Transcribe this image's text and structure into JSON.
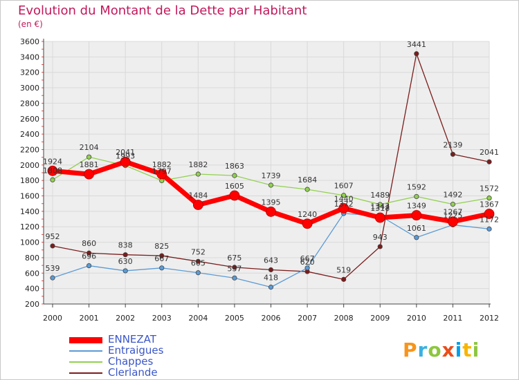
{
  "title": "Evolution du Montant de la Dette par Habitant",
  "unit": "(en €)",
  "logo": {
    "text": "Proxiti",
    "colors": [
      "#f7941d",
      "#3bb0e0",
      "#8dc63f",
      "#e94e1b",
      "#00a0e9",
      "#f7b600",
      "#8dc63f"
    ]
  },
  "chart_data": {
    "type": "line",
    "categories": [
      "2000",
      "2001",
      "2002",
      "2003",
      "2004",
      "2005",
      "2006",
      "2007",
      "2008",
      "2009",
      "2010",
      "2011",
      "2012"
    ],
    "ylim": [
      200,
      3600
    ],
    "yticks": [
      200,
      400,
      600,
      800,
      1000,
      1200,
      1400,
      1600,
      1800,
      2000,
      2200,
      2400,
      2600,
      2800,
      3000,
      3200,
      3400,
      3600
    ],
    "grid": true,
    "legend_position": "bottom-left",
    "series": [
      {
        "name": "ENNEZAT",
        "color": "#ff0000",
        "values": [
          1924,
          1881,
          2041,
          1882,
          1484,
          1605,
          1395,
          1240,
          1440,
          1318,
          1349,
          1267,
          1367
        ]
      },
      {
        "name": "Entraigues",
        "color": "#5b9bd5",
        "values": [
          539,
          696,
          630,
          667,
          605,
          537,
          418,
          667,
          1372,
          1343,
          1061,
          1225,
          1172
        ]
      },
      {
        "name": "Chappes",
        "color": "#92d050",
        "values": [
          1808,
          2104,
          1993,
          1797,
          1882,
          1863,
          1739,
          1684,
          1607,
          1489,
          1592,
          1492,
          1572
        ]
      },
      {
        "name": "Clerlande",
        "color": "#7b1c1c",
        "values": [
          952,
          860,
          838,
          825,
          752,
          675,
          643,
          620,
          519,
          943,
          3441,
          2139,
          2041
        ]
      }
    ]
  }
}
